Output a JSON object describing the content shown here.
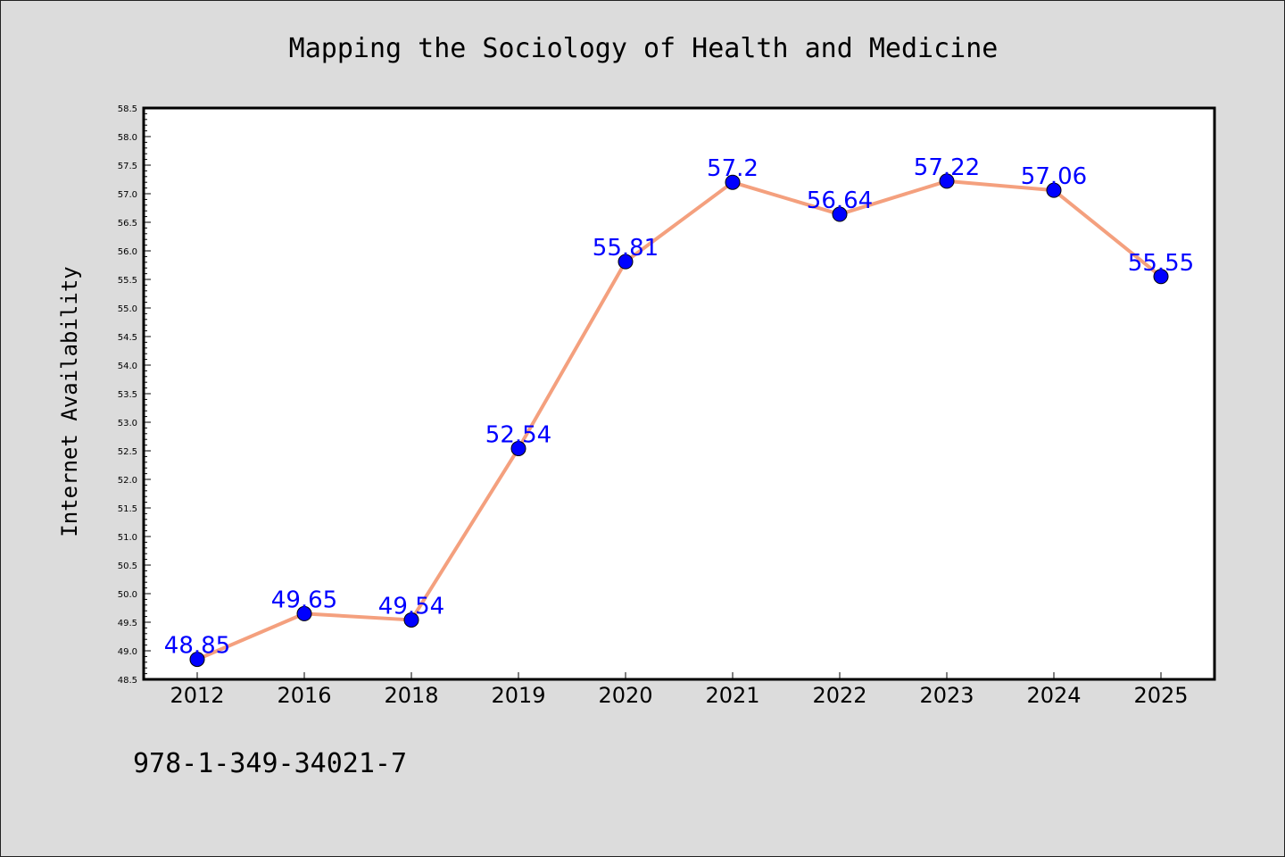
{
  "chart_data": {
    "type": "line",
    "title": "Mapping the Sociology of Health and Medicine",
    "xlabel": "",
    "ylabel": "Internet Availability",
    "categories": [
      "2012",
      "2016",
      "2018",
      "2019",
      "2020",
      "2021",
      "2022",
      "2023",
      "2024",
      "2025"
    ],
    "series": [
      {
        "values": [
          48.85,
          49.65,
          49.54,
          52.54,
          55.81,
          57.2,
          56.64,
          57.22,
          57.06,
          55.55
        ],
        "data_labels": [
          "48.85",
          "49.65",
          "49.54",
          "52.54",
          "55.81",
          "57.2",
          "56.64",
          "57.22",
          "57.06",
          "55.55"
        ]
      }
    ],
    "ylim": [
      48.5,
      58.5
    ],
    "yticks": [
      "48.5",
      "49.0",
      "49.5",
      "50.0",
      "50.5",
      "51.0",
      "51.5",
      "52.0",
      "52.5",
      "53.0",
      "53.5",
      "54.0",
      "54.5",
      "55.0",
      "55.5",
      "56.0",
      "56.5",
      "57.0",
      "57.5",
      "58.0",
      "58.5"
    ],
    "grid": false,
    "legend": "none",
    "colors": {
      "line": "#f4a07e",
      "marker": "#0000ff",
      "label": "#0000ff",
      "plot_background": "#ffffff",
      "figure_background": "#dcdcdc"
    }
  },
  "footer": {
    "text": "978-1-349-34021-7"
  }
}
